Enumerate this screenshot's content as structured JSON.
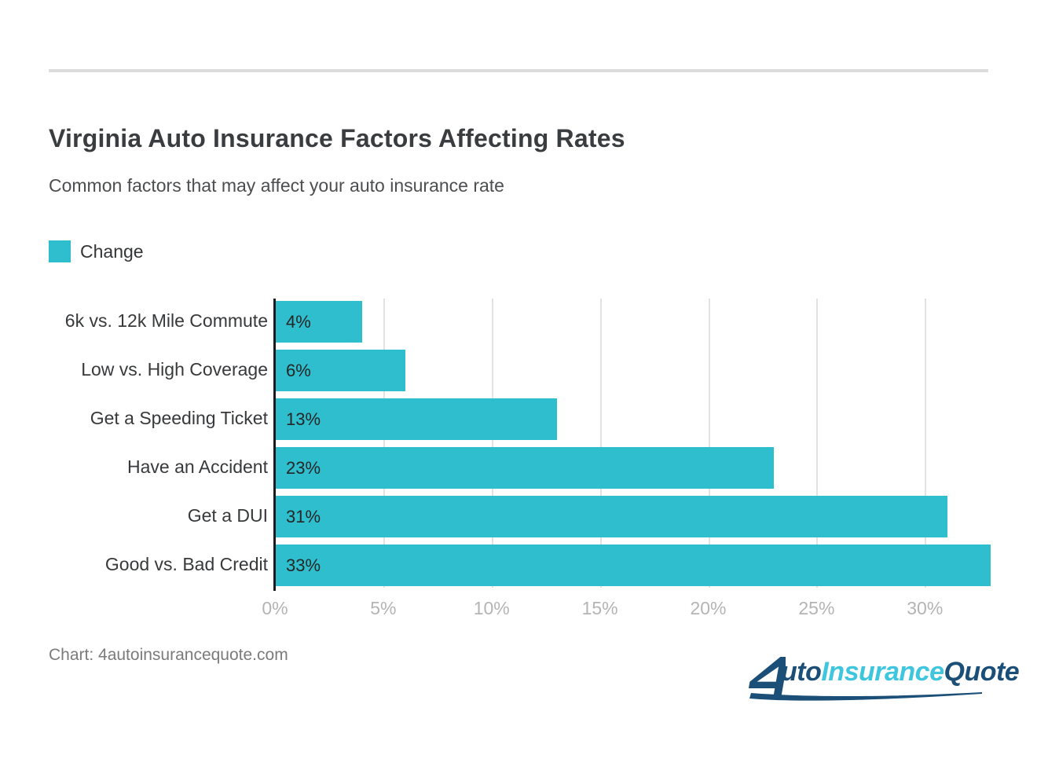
{
  "header": {
    "title": "Virginia Auto Insurance Factors Affecting Rates",
    "subtitle": "Common factors that may affect your auto insurance rate"
  },
  "legend": {
    "label": "Change",
    "color": "#2EBECD"
  },
  "chart_data": {
    "type": "bar",
    "orientation": "horizontal",
    "title": "Virginia Auto Insurance Factors Affecting Rates",
    "subtitle": "Common factors that may affect your auto insurance rate",
    "legend_position": "top-left",
    "grid": true,
    "categories": [
      "6k vs. 12k Mile Commute",
      "Low vs. High Coverage",
      "Get a Speeding Ticket",
      "Have an Accident",
      "Get a DUI",
      "Good vs. Bad Credit"
    ],
    "series": [
      {
        "name": "Change",
        "values": [
          4,
          6,
          13,
          23,
          31,
          33
        ],
        "labels": [
          "4%",
          "6%",
          "13%",
          "23%",
          "31%",
          "33%"
        ],
        "color": "#2EBECD"
      }
    ],
    "xlim": [
      0,
      33
    ],
    "xticks": [
      0,
      5,
      10,
      15,
      20,
      25,
      30
    ],
    "xtick_labels": [
      "0%",
      "5%",
      "10%",
      "15%",
      "20%",
      "25%",
      "30%"
    ]
  },
  "footer": {
    "source": "Chart: 4autoinsurancequote.com",
    "logo": {
      "text": "AutoInsuranceQuote",
      "part_auto": "uto",
      "part_insurance": "Insurance",
      "part_quote": "Quote",
      "navy": "#1B4F78",
      "cyan": "#3FC6DF"
    }
  }
}
